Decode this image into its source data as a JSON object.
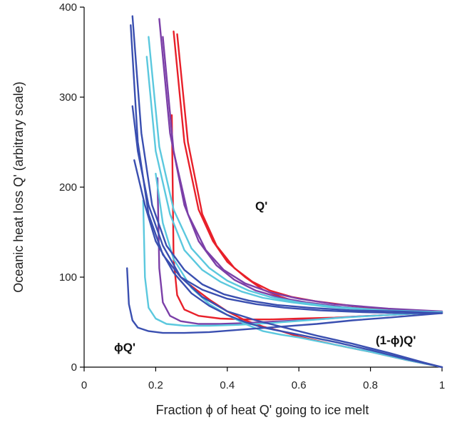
{
  "chart_data": {
    "type": "line",
    "title": "",
    "xlabel": "Fraction ϕ of heat Q' going to ice melt",
    "ylabel": "Oceanic heat loss Q' (arbitrary scale)",
    "xlim": [
      0,
      1
    ],
    "ylim": [
      0,
      400
    ],
    "xticks": [
      "0",
      "0.2",
      "0.4",
      "0.6",
      "0.8",
      "1"
    ],
    "yticks": [
      "0",
      "100",
      "200",
      "300",
      "400"
    ],
    "xtick_values": [
      0,
      0.2,
      0.4,
      0.6,
      0.8,
      1
    ],
    "ytick_values": [
      0,
      100,
      200,
      300,
      400
    ],
    "grid": false,
    "annotations": {
      "q_prime": "Q'",
      "phi_q_prime": "ϕQ'",
      "one_minus_phi_q_prime": "(1-ϕ)Q'"
    },
    "colors": {
      "red": "#e8202a",
      "purple": "#7b3fa8",
      "cyan": "#5bc8de",
      "blue": "#3a4fb0"
    },
    "series": [
      {
        "color_key": "red",
        "x": [
          0.25,
          0.28,
          0.32,
          0.36,
          0.4,
          0.45,
          0.5,
          0.55,
          0.6,
          0.7,
          0.8,
          0.9,
          1.0
        ],
        "y": [
          373,
          250,
          175,
          140,
          117,
          100,
          86,
          78,
          72,
          67,
          63,
          62,
          60
        ]
      },
      {
        "color_key": "red",
        "x": [
          0.26,
          0.29,
          0.33,
          0.37,
          0.42,
          0.47,
          0.52,
          0.58,
          0.65,
          0.75,
          0.85,
          1.0
        ],
        "y": [
          370,
          250,
          170,
          135,
          110,
          95,
          85,
          78,
          73,
          68,
          64,
          61
        ]
      },
      {
        "color_key": "red",
        "x": [
          0.245,
          0.25,
          0.26,
          0.28,
          0.32,
          0.38,
          0.45,
          0.52,
          0.6,
          0.7,
          0.8,
          0.9,
          1.0
        ],
        "y": [
          280,
          120,
          80,
          64,
          57,
          54,
          53,
          53,
          54,
          55,
          57,
          59,
          61
        ]
      },
      {
        "color_key": "red",
        "x": [
          0.25,
          0.27,
          0.3,
          0.35,
          0.4,
          0.45,
          0.5,
          0.55,
          0.6,
          0.7,
          0.8,
          0.9,
          1.0
        ],
        "y": [
          110,
          100,
          90,
          75,
          62,
          52,
          45,
          40,
          34,
          25,
          17,
          8,
          0
        ]
      },
      {
        "color_key": "purple",
        "x": [
          0.21,
          0.24,
          0.28,
          0.32,
          0.37,
          0.42,
          0.48,
          0.55,
          0.62,
          0.72,
          0.85,
          1.0
        ],
        "y": [
          387,
          260,
          180,
          140,
          113,
          97,
          85,
          77,
          72,
          67,
          63,
          61
        ]
      },
      {
        "color_key": "purple",
        "x": [
          0.22,
          0.25,
          0.29,
          0.34,
          0.39,
          0.45,
          0.52,
          0.6,
          0.7,
          0.85,
          1.0
        ],
        "y": [
          367,
          240,
          170,
          130,
          108,
          93,
          83,
          76,
          70,
          65,
          62
        ]
      },
      {
        "color_key": "purple",
        "x": [
          0.205,
          0.21,
          0.22,
          0.24,
          0.27,
          0.32,
          0.38,
          0.45,
          0.55,
          0.65,
          0.75,
          0.85,
          1.0
        ],
        "y": [
          210,
          110,
          72,
          57,
          51,
          48,
          48,
          49,
          51,
          53,
          56,
          58,
          61
        ]
      },
      {
        "color_key": "cyan",
        "x": [
          0.18,
          0.21,
          0.25,
          0.3,
          0.35,
          0.4,
          0.46,
          0.52,
          0.6,
          0.7,
          0.85,
          1.0
        ],
        "y": [
          367,
          245,
          175,
          132,
          110,
          96,
          85,
          78,
          72,
          67,
          63,
          61
        ]
      },
      {
        "color_key": "cyan",
        "x": [
          0.175,
          0.2,
          0.24,
          0.28,
          0.33,
          0.38,
          0.44,
          0.5,
          0.58,
          0.68,
          0.82,
          1.0
        ],
        "y": [
          345,
          240,
          170,
          130,
          108,
          95,
          84,
          77,
          72,
          67,
          63,
          61
        ]
      },
      {
        "color_key": "cyan",
        "x": [
          0.165,
          0.17,
          0.18,
          0.2,
          0.23,
          0.28,
          0.35,
          0.43,
          0.52,
          0.62,
          0.72,
          0.85,
          1.0
        ],
        "y": [
          185,
          100,
          66,
          54,
          48,
          46,
          46,
          47,
          49,
          52,
          55,
          58,
          61
        ]
      },
      {
        "color_key": "cyan",
        "x": [
          0.2,
          0.22,
          0.25,
          0.3,
          0.35,
          0.4,
          0.45,
          0.5,
          0.55,
          0.6,
          0.7,
          0.8,
          0.9,
          1.0
        ],
        "y": [
          215,
          160,
          120,
          88,
          70,
          58,
          48,
          40,
          36,
          33,
          25,
          17,
          8,
          0
        ]
      },
      {
        "color_key": "blue",
        "x": [
          0.135,
          0.16,
          0.19,
          0.23,
          0.28,
          0.33,
          0.39,
          0.46,
          0.54,
          0.63,
          0.75,
          0.88,
          1.0
        ],
        "y": [
          390,
          260,
          180,
          135,
          108,
          92,
          81,
          74,
          69,
          66,
          63,
          62,
          60
        ]
      },
      {
        "color_key": "blue",
        "x": [
          0.13,
          0.15,
          0.18,
          0.22,
          0.27,
          0.33,
          0.4,
          0.48,
          0.56,
          0.66,
          0.78,
          0.9,
          1.0
        ],
        "y": [
          380,
          250,
          170,
          125,
          100,
          86,
          76,
          70,
          66,
          63,
          61,
          60,
          60
        ]
      },
      {
        "color_key": "blue",
        "x": [
          0.12,
          0.125,
          0.135,
          0.15,
          0.18,
          0.22,
          0.28,
          0.35,
          0.45,
          0.55,
          0.65,
          0.75,
          0.85,
          1.0
        ],
        "y": [
          110,
          70,
          52,
          44,
          40,
          38,
          38,
          39,
          42,
          45,
          48,
          52,
          55,
          60
        ]
      },
      {
        "color_key": "blue",
        "x": [
          0.135,
          0.15,
          0.18,
          0.22,
          0.27,
          0.33,
          0.4,
          0.48,
          0.55,
          0.65,
          0.75,
          0.85,
          0.95,
          1.0
        ],
        "y": [
          290,
          240,
          180,
          135,
          100,
          78,
          62,
          52,
          45,
          35,
          26,
          16,
          5,
          0
        ]
      },
      {
        "color_key": "blue",
        "x": [
          0.14,
          0.17,
          0.2,
          0.25,
          0.3,
          0.35,
          0.4,
          0.45,
          0.5,
          0.55,
          0.6,
          0.7,
          0.8,
          0.9,
          1.0
        ],
        "y": [
          230,
          180,
          140,
          105,
          82,
          68,
          58,
          50,
          44,
          40,
          36,
          28,
          19,
          9,
          0
        ]
      }
    ]
  }
}
